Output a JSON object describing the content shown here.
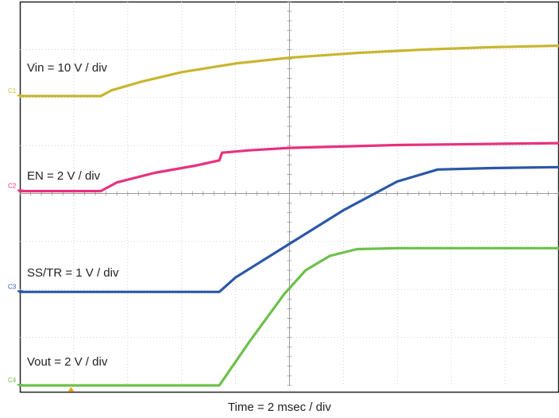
{
  "chart_data": {
    "type": "line",
    "title": "",
    "xlabel": "Time = 2 msec / div",
    "ylabel": "",
    "grid": true,
    "x_unit": "msec",
    "x_divisions": 10,
    "y_divisions": 8,
    "trigger_marker_x": 1.9,
    "series": [
      {
        "name": "Vin = 10 V / div",
        "channel": "C1",
        "color": "#c8b630",
        "ground_level_div": 6.03,
        "x": [
          0.0,
          3.0,
          3.4,
          4.5,
          6.0,
          8.0,
          10.0,
          12.5,
          15.0,
          17.5,
          20.0
        ],
        "y": [
          0.0,
          0.0,
          0.12,
          0.3,
          0.5,
          0.68,
          0.8,
          0.9,
          0.97,
          1.02,
          1.05
        ]
      },
      {
        "name": "EN = 2 V / div",
        "channel": "C2",
        "color": "#e8317f",
        "ground_level_div": 4.05,
        "x": [
          0.0,
          3.0,
          3.6,
          5.0,
          6.5,
          7.4,
          7.5,
          8.5,
          10.0,
          14.0,
          17.0,
          20.0
        ],
        "y": [
          0.0,
          0.0,
          0.18,
          0.38,
          0.53,
          0.64,
          0.8,
          0.85,
          0.9,
          0.96,
          0.98,
          1.0
        ]
      },
      {
        "name": "SS/TR = 1 V / div",
        "channel": "C3",
        "color": "#2b57a6",
        "ground_level_div": 1.95,
        "x": [
          0.0,
          7.4,
          8.0,
          10.0,
          12.0,
          14.0,
          15.5,
          17.5,
          20.0
        ],
        "y": [
          0.0,
          0.0,
          0.3,
          1.0,
          1.7,
          2.3,
          2.55,
          2.58,
          2.6
        ]
      },
      {
        "name": "Vout = 2 V / div",
        "channel": "C4",
        "color": "#6cc04a",
        "ground_level_div": 0.0,
        "x": [
          0.0,
          7.4,
          8.5,
          9.8,
          10.6,
          11.5,
          12.5,
          14.0,
          17.0,
          20.0
        ],
        "y": [
          0.0,
          0.0,
          0.9,
          1.9,
          2.4,
          2.7,
          2.84,
          2.86,
          2.86,
          2.86
        ]
      }
    ]
  }
}
